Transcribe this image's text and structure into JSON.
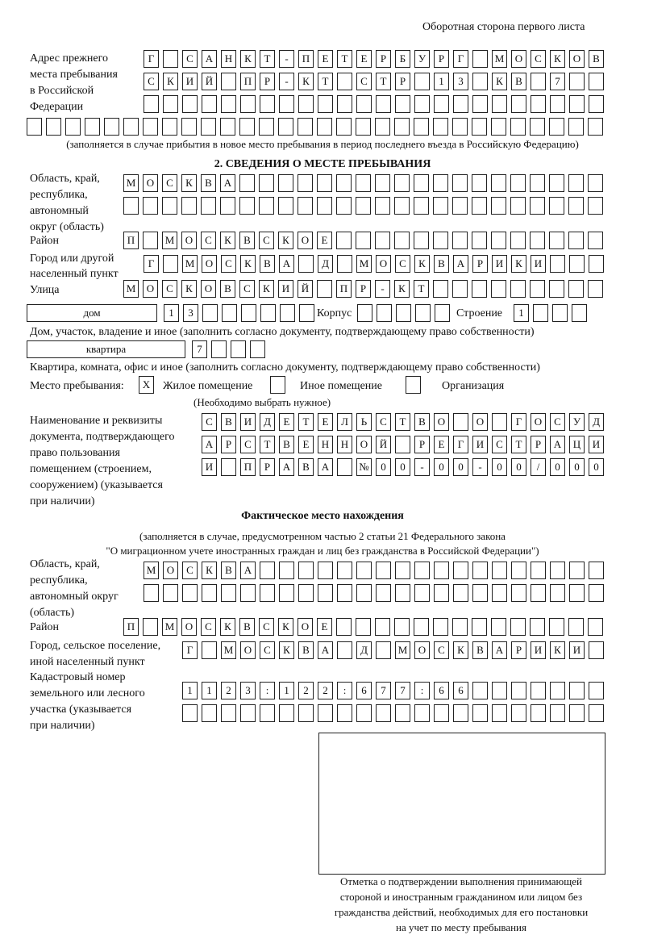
{
  "header": "Оборотная сторона первого листа",
  "prev_address": {
    "label": [
      "Адрес прежнего",
      "места пребывания",
      "в Российской",
      "Федерации"
    ],
    "rows": [
      [
        "Г",
        "",
        "С",
        "А",
        "Н",
        "К",
        "Т",
        "-",
        "П",
        "Е",
        "Т",
        "Е",
        "Р",
        "Б",
        "У",
        "Р",
        "Г",
        "",
        "М",
        "О",
        "С",
        "К",
        "О",
        "В"
      ],
      [
        "С",
        "К",
        "И",
        "Й",
        "",
        "П",
        "Р",
        "-",
        "К",
        "Т",
        "",
        "С",
        "Т",
        "Р",
        "",
        "1",
        "3",
        "",
        "К",
        "В",
        "",
        "7",
        "",
        ""
      ],
      [
        "",
        "",
        "",
        "",
        "",
        "",
        "",
        "",
        "",
        "",
        "",
        "",
        "",
        "",
        "",
        "",
        "",
        "",
        "",
        "",
        "",
        "",
        "",
        ""
      ],
      [
        "",
        "",
        "",
        "",
        "",
        "",
        "",
        "",
        "",
        "",
        "",
        "",
        "",
        "",
        "",
        "",
        "",
        "",
        "",
        "",
        "",
        "",
        "",
        "",
        "",
        "",
        "",
        "",
        "",
        ""
      ]
    ],
    "note": "(заполняется в случае прибытия в новое место пребывания в период последнего въезда в Российскую Федерацию)"
  },
  "section2": {
    "title": "2. СВЕДЕНИЯ О МЕСТЕ ПРЕБЫВАНИЯ",
    "region_label": [
      "Область, край,",
      "республика,",
      "автономный",
      "округ (область)"
    ],
    "region_rows": [
      [
        "М",
        "О",
        "С",
        "К",
        "В",
        "А",
        "",
        "",
        "",
        "",
        "",
        "",
        "",
        "",
        "",
        "",
        "",
        "",
        "",
        "",
        "",
        "",
        "",
        "",
        ""
      ],
      [
        "",
        "",
        "",
        "",
        "",
        "",
        "",
        "",
        "",
        "",
        "",
        "",
        "",
        "",
        "",
        "",
        "",
        "",
        "",
        "",
        "",
        "",
        "",
        "",
        ""
      ]
    ],
    "district_label": "Район",
    "district": [
      "П",
      "",
      "М",
      "О",
      "С",
      "К",
      "В",
      "С",
      "К",
      "О",
      "Е",
      "",
      "",
      "",
      "",
      "",
      "",
      "",
      "",
      "",
      "",
      "",
      "",
      "",
      ""
    ],
    "city_label": [
      "Город или другой",
      "населенный пункт"
    ],
    "city": [
      "Г",
      "",
      "М",
      "О",
      "С",
      "К",
      "В",
      "А",
      "",
      "Д",
      "",
      "М",
      "О",
      "С",
      "К",
      "В",
      "А",
      "Р",
      "И",
      "К",
      "И",
      "",
      "",
      ""
    ],
    "street_label": "Улица",
    "street": [
      "М",
      "О",
      "С",
      "К",
      "О",
      "В",
      "С",
      "К",
      "И",
      "Й",
      "",
      "П",
      "Р",
      "-",
      "К",
      "Т",
      "",
      "",
      "",
      "",
      "",
      "",
      "",
      "",
      ""
    ],
    "house_type": "дом",
    "house": [
      "1",
      "3",
      "",
      "",
      "",
      "",
      "",
      ""
    ],
    "korpus_label": "Корпус",
    "korpus": [
      "",
      "",
      "",
      "",
      ""
    ],
    "building_label": "Строение",
    "building": [
      "1",
      "",
      "",
      ""
    ],
    "house_note": "Дом, участок, владение и иное (заполнить согласно документу, подтверждающему право собственности)",
    "apt_type": "квартира",
    "apt": [
      "7",
      "",
      "",
      ""
    ],
    "apt_note": "Квартира, комната, офис и иное (заполнить согласно документу, подтверждающему право собственности)",
    "stay_label": "Место пребывания:",
    "options": [
      {
        "label": "Жилое помещение",
        "mark": "Х"
      },
      {
        "label": "Иное помещение",
        "mark": ""
      },
      {
        "label": "Организация",
        "mark": ""
      }
    ],
    "choose_note": "(Необходимо выбрать нужное)",
    "doc_label": [
      "Наименование и реквизиты",
      "документа, подтверждающего",
      "право пользования",
      "помещением (строением,",
      "сооружением) (указывается",
      "при наличии)"
    ],
    "doc_rows": [
      [
        "С",
        "В",
        "И",
        "Д",
        "Е",
        "Т",
        "Е",
        "Л",
        "Ь",
        "С",
        "Т",
        "В",
        "О",
        "",
        "О",
        "",
        "Г",
        "О",
        "С",
        "У",
        "Д"
      ],
      [
        "А",
        "Р",
        "С",
        "Т",
        "В",
        "Е",
        "Н",
        "Н",
        "О",
        "Й",
        "",
        "Р",
        "Е",
        "Г",
        "И",
        "С",
        "Т",
        "Р",
        "А",
        "Ц",
        "И"
      ],
      [
        "И",
        "",
        "П",
        "Р",
        "А",
        "В",
        "А",
        "",
        "№",
        "0",
        "0",
        "-",
        "0",
        "0",
        "-",
        "0",
        "0",
        "/",
        "0",
        "0",
        "0"
      ]
    ]
  },
  "actual": {
    "title": "Фактическое место нахождения",
    "note": [
      "(заполняется в случае, предусмотренном частью 2 статьи 21 Федерального закона",
      "\"О миграционном учете иностранных граждан и лиц без гражданства в Российской Федерации\")"
    ],
    "region_label": [
      "Область, край,",
      "республика,",
      "автономный округ",
      "(область)"
    ],
    "region_rows": [
      [
        "М",
        "О",
        "С",
        "К",
        "В",
        "А",
        "",
        "",
        "",
        "",
        "",
        "",
        "",
        "",
        "",
        "",
        "",
        "",
        "",
        "",
        "",
        "",
        "",
        ""
      ],
      [
        "",
        "",
        "",
        "",
        "",
        "",
        "",
        "",
        "",
        "",
        "",
        "",
        "",
        "",
        "",
        "",
        "",
        "",
        "",
        "",
        "",
        "",
        "",
        ""
      ]
    ],
    "district_label": "Район",
    "district": [
      "П",
      "",
      "М",
      "О",
      "С",
      "К",
      "В",
      "С",
      "К",
      "О",
      "Е",
      "",
      "",
      "",
      "",
      "",
      "",
      "",
      "",
      "",
      "",
      "",
      "",
      "",
      ""
    ],
    "city_label": [
      "Город, сельское поселение,",
      "иной населенный пункт"
    ],
    "city": [
      "Г",
      "",
      "М",
      "О",
      "С",
      "К",
      "В",
      "А",
      "",
      "Д",
      "",
      "М",
      "О",
      "С",
      "К",
      "В",
      "А",
      "Р",
      "И",
      "К",
      "И",
      ""
    ],
    "cadastre_label": [
      "Кадастровый номер",
      "земельного или лесного",
      "участка (указывается",
      "при наличии)"
    ],
    "cadastre_rows": [
      [
        "1",
        "1",
        "2",
        "3",
        ":",
        "1",
        "2",
        "2",
        ":",
        "6",
        "7",
        "7",
        ":",
        "6",
        "6",
        "",
        "",
        "",
        "",
        "",
        "",
        ""
      ],
      [
        "",
        "",
        "",
        "",
        "",
        "",
        "",
        "",
        "",
        "",
        "",
        "",
        "",
        "",
        "",
        "",
        "",
        "",
        "",
        "",
        "",
        ""
      ]
    ]
  },
  "stamp": {
    "caption": [
      "Отметка о подтверждении выполнения принимающей",
      "стороной и иностранным гражданином или лицом без",
      "гражданства действий, необходимых для его постановки",
      "на учет по месту пребывания"
    ]
  }
}
